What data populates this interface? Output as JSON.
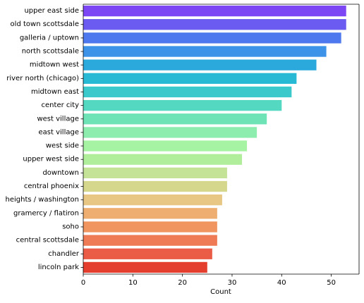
{
  "chart_data": {
    "type": "bar",
    "orientation": "horizontal",
    "title": "",
    "xlabel": "Count",
    "ylabel": "",
    "xlim": [
      0,
      55.6
    ],
    "xticks": [
      0,
      10,
      20,
      30,
      40,
      50
    ],
    "grid": false,
    "legend": "none",
    "categories": [
      "upper east side",
      "old town scottsdale",
      "galleria / uptown",
      "north scottsdale",
      "midtown west",
      "river north (chicago)",
      "midtown east",
      "center city",
      "west village",
      "east village",
      "west side",
      "upper west side",
      "downtown",
      "central phoenix",
      "heights / washington",
      "gramercy / flatiron",
      "soho",
      "central scottsdale",
      "chandler",
      "lincoln park"
    ],
    "values": [
      53,
      53,
      52,
      49,
      47,
      43,
      42,
      40,
      37,
      35,
      33,
      32,
      29,
      29,
      28,
      27,
      27,
      27,
      26,
      25
    ],
    "colors": [
      "#7c46f5",
      "#6b5bf0",
      "#4e79ee",
      "#3c93e8",
      "#2ba9dd",
      "#28bad4",
      "#3cc9cb",
      "#55d8c1",
      "#6ee4b6",
      "#8cedae",
      "#a6f3a3",
      "#b1ee9c",
      "#c4e396",
      "#d5d78d",
      "#e8c684",
      "#edae6f",
      "#f0955f",
      "#ee7b55",
      "#ea5c45",
      "#e43f2e"
    ]
  }
}
